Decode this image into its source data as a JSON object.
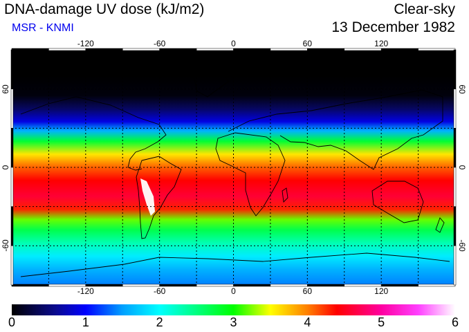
{
  "header": {
    "title": "DNA-damage UV dose (kJ/m2)",
    "credit": "MSR - KNMI",
    "sky_condition": "Clear-sky",
    "date": "13 December 1982"
  },
  "map": {
    "projection": "equirectangular",
    "lon_range": [
      -180,
      180
    ],
    "lat_range": [
      -90,
      90
    ],
    "grid_spacing_deg": 30,
    "lon_tick_labels": [
      "-120",
      "-60",
      "0",
      "60",
      "120"
    ],
    "lat_tick_labels_left": [
      "60",
      "0",
      "-60"
    ],
    "lat_tick_labels_right": [
      "60",
      "0",
      "-60"
    ],
    "dose_profile": [
      {
        "lat": 90,
        "dose": 0.0
      },
      {
        "lat": 70,
        "dose": 0.0
      },
      {
        "lat": 55,
        "dose": 0.05
      },
      {
        "lat": 45,
        "dose": 0.4
      },
      {
        "lat": 35,
        "dose": 0.9
      },
      {
        "lat": 28,
        "dose": 1.6
      },
      {
        "lat": 20,
        "dose": 2.8
      },
      {
        "lat": 10,
        "dose": 3.6
      },
      {
        "lat": 0,
        "dose": 4.1
      },
      {
        "lat": -10,
        "dose": 4.4
      },
      {
        "lat": -22,
        "dose": 4.6
      },
      {
        "lat": -32,
        "dose": 4.3
      },
      {
        "lat": -40,
        "dose": 3.2
      },
      {
        "lat": -48,
        "dose": 2.7
      },
      {
        "lat": -58,
        "dose": 2.3
      },
      {
        "lat": -68,
        "dose": 1.9
      },
      {
        "lat": -78,
        "dose": 1.6
      },
      {
        "lat": -90,
        "dose": 1.4
      }
    ]
  },
  "colorbar": {
    "min": 0,
    "max": 6,
    "labels": [
      "0",
      "1",
      "2",
      "3",
      "4",
      "5",
      "6"
    ],
    "stops": [
      {
        "value": 0.0,
        "color": "#000000"
      },
      {
        "value": 0.6,
        "color": "#0a0a90"
      },
      {
        "value": 1.0,
        "color": "#0000ff"
      },
      {
        "value": 1.5,
        "color": "#00a0ff"
      },
      {
        "value": 2.0,
        "color": "#00ffff"
      },
      {
        "value": 2.5,
        "color": "#00ff80"
      },
      {
        "value": 3.0,
        "color": "#00ff00"
      },
      {
        "value": 3.5,
        "color": "#ffff00"
      },
      {
        "value": 4.0,
        "color": "#ff8000"
      },
      {
        "value": 4.4,
        "color": "#ff0000"
      },
      {
        "value": 5.0,
        "color": "#ff00a0"
      },
      {
        "value": 5.5,
        "color": "#ff40ff"
      },
      {
        "value": 6.0,
        "color": "#ffffff"
      }
    ]
  }
}
